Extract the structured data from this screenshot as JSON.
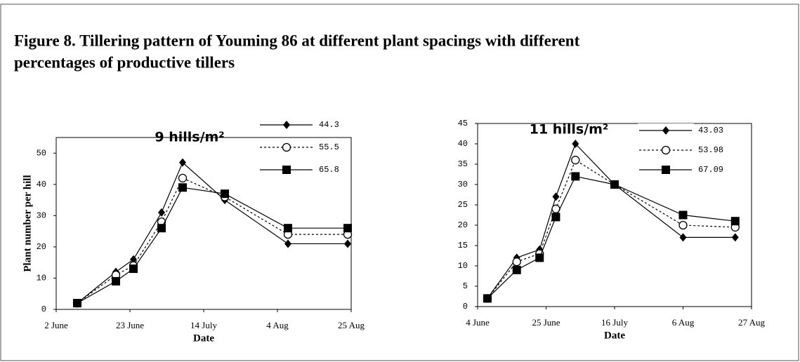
{
  "figure_title": [
    "Figure 8. Tillering pattern of Youming 86 at different plant spacings with different",
    "percentages of productive tillers"
  ],
  "chart_data": [
    {
      "type": "line",
      "title": "9 hills/m²",
      "x_label": "Date",
      "y_label": "Plant number per hill",
      "x": [
        7,
        18,
        23,
        31,
        37,
        49,
        67,
        84
      ],
      "xlim": [
        1,
        85
      ],
      "xticks": [
        {
          "value": 1,
          "label": "2 June"
        },
        {
          "value": 22,
          "label": "23 June"
        },
        {
          "value": 43,
          "label": "14 July"
        },
        {
          "value": 64,
          "label": "4 Aug"
        },
        {
          "value": 85,
          "label": "25 Aug"
        }
      ],
      "ylim": [
        0,
        55
      ],
      "yticks": [
        0,
        10,
        20,
        30,
        40,
        50
      ],
      "series": [
        {
          "name": "44.3",
          "color": "#000000",
          "marker": "diamond",
          "dash": false,
          "values": [
            2,
            12,
            16,
            31,
            47,
            35,
            21,
            21
          ]
        },
        {
          "name": "55.5",
          "color": "#000000",
          "marker": "circle",
          "dash": true,
          "values": [
            2,
            11,
            14,
            28,
            42,
            36,
            24,
            24
          ]
        },
        {
          "name": "65.8",
          "color": "#000000",
          "marker": "square",
          "dash": false,
          "values": [
            2,
            9,
            13,
            26,
            39,
            37,
            26,
            26
          ]
        }
      ]
    },
    {
      "type": "line",
      "title": "11 hills/m²",
      "x_label": "Date",
      "x": [
        7,
        16,
        23,
        28,
        34,
        46,
        67,
        83
      ],
      "xlim": [
        4,
        88
      ],
      "xticks": [
        {
          "value": 4,
          "label": "4 June"
        },
        {
          "value": 25,
          "label": "25 June"
        },
        {
          "value": 46,
          "label": "16 July"
        },
        {
          "value": 67,
          "label": "6 Aug"
        },
        {
          "value": 88,
          "label": "27 Aug"
        }
      ],
      "ylim": [
        0,
        45
      ],
      "yticks": [
        0,
        5,
        10,
        15,
        20,
        25,
        30,
        35,
        40,
        45
      ],
      "series": [
        {
          "name": "43.03",
          "color": "#000000",
          "marker": "diamond",
          "dash": false,
          "values": [
            2,
            12,
            14,
            27,
            40,
            30,
            17,
            17
          ]
        },
        {
          "name": "53.98",
          "color": "#000000",
          "marker": "circle",
          "dash": true,
          "values": [
            2,
            11,
            13,
            24,
            36,
            30,
            20,
            19.5
          ]
        },
        {
          "name": "67.09",
          "color": "#000000",
          "marker": "square",
          "dash": false,
          "values": [
            2,
            9,
            12,
            22,
            32,
            30,
            22.5,
            21
          ]
        }
      ]
    }
  ]
}
